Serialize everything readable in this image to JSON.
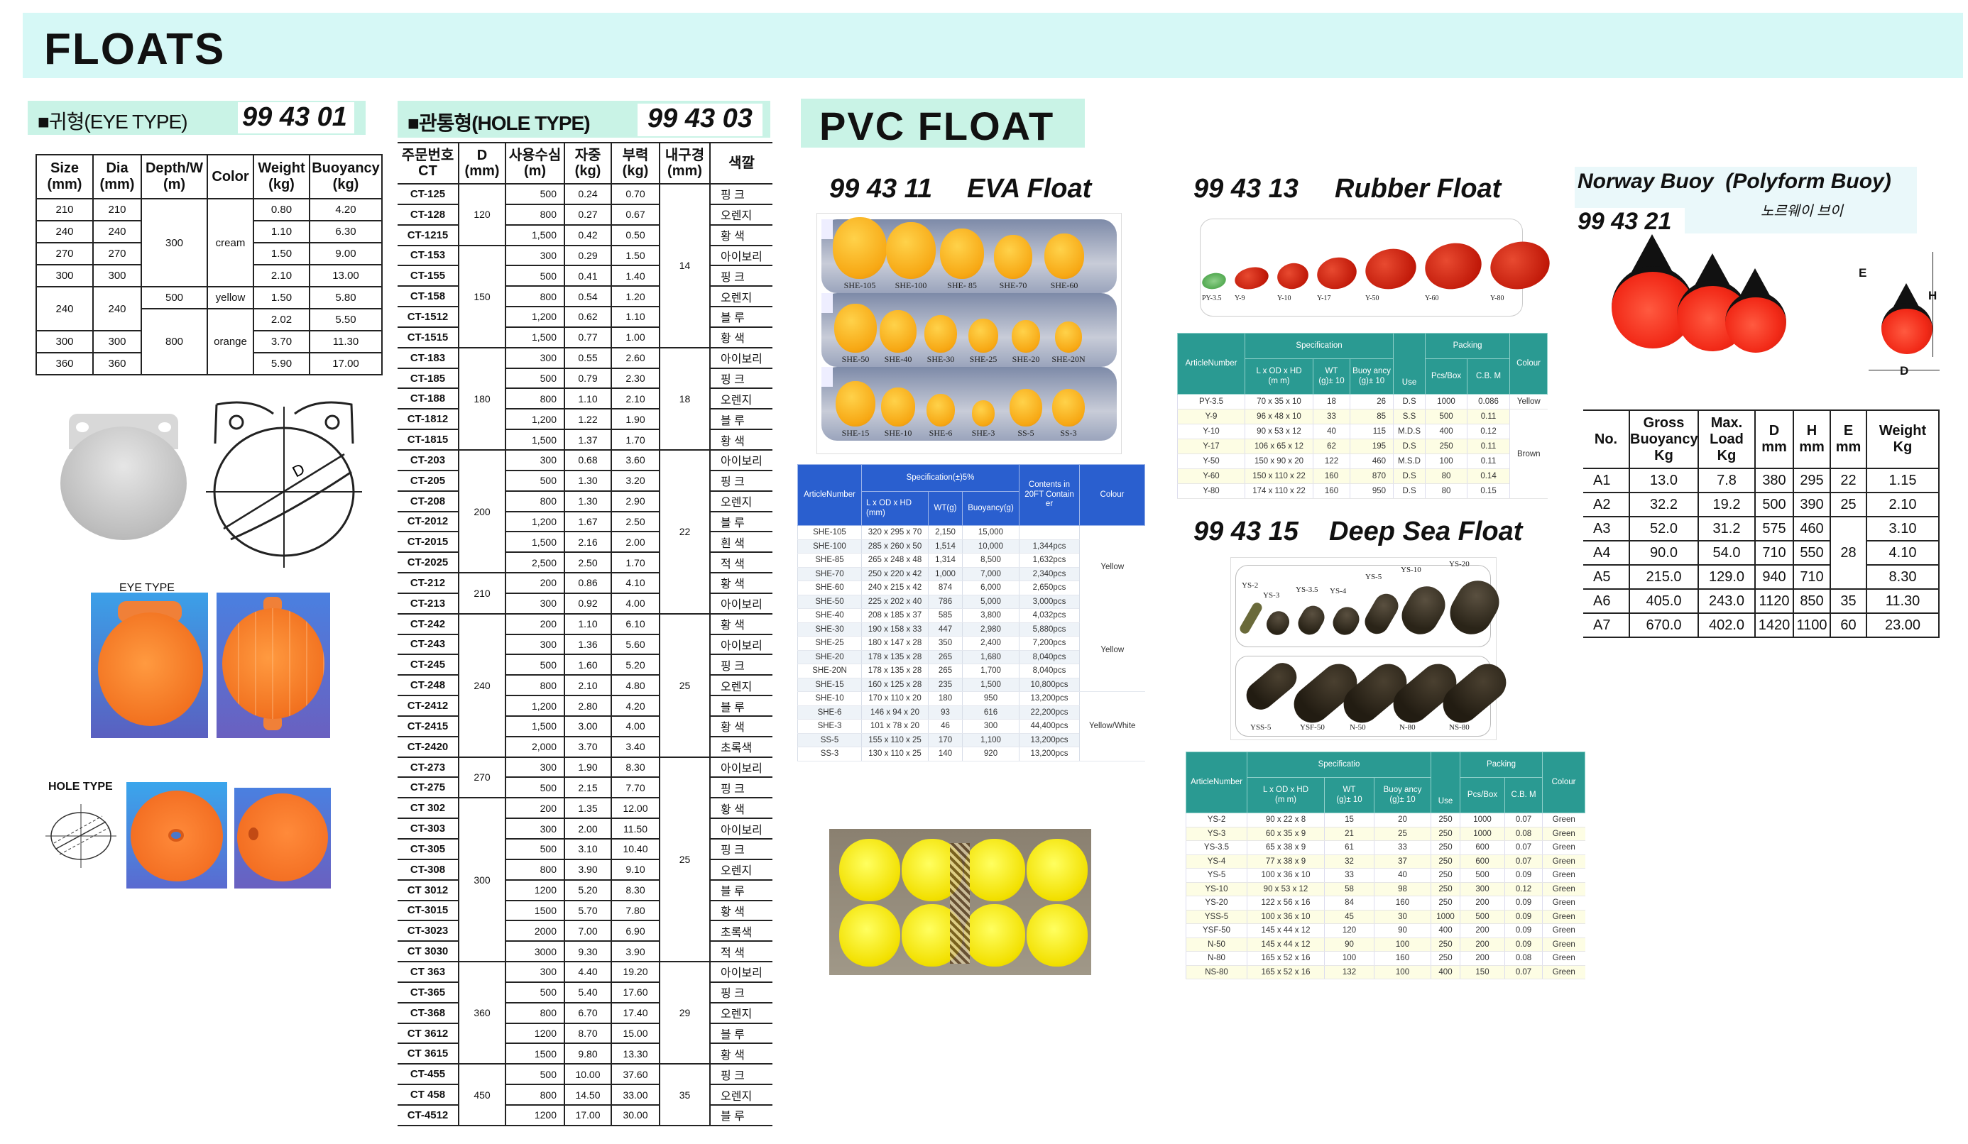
{
  "page_title": "FLOATS",
  "colors": {
    "band": "#d6f8f6",
    "eva_header": "#2a5fcf",
    "teal_header": "#2a9a92",
    "float_orange": "#f57a20",
    "buoy_red": "#f22a18"
  },
  "eye_type": {
    "section_title": "■귀형(EYE TYPE)",
    "code": "99 43 01",
    "headers": [
      "Size\n(mm)",
      "Dia\n(mm)",
      "Depth/W\n(m)",
      "Color",
      "Weight\n(kg)",
      "Buoyancy\n(kg)"
    ],
    "rows": [
      [
        "210",
        "210",
        "300",
        "cream",
        "0.80",
        "4.20"
      ],
      [
        "240",
        "240",
        "300",
        "cream",
        "1.10",
        "6.30"
      ],
      [
        "270",
        "270",
        "300",
        "cream",
        "1.50",
        "9.00"
      ],
      [
        "300",
        "300",
        "300",
        "cream",
        "2.10",
        "13.00"
      ],
      [
        "240",
        "240",
        "500",
        "yellow",
        "1.50",
        "5.80"
      ],
      [
        "240",
        "240",
        "800",
        "orange",
        "2.02",
        "5.50"
      ],
      [
        "300",
        "300",
        "800",
        "orange",
        "3.70",
        "11.30"
      ],
      [
        "360",
        "360",
        "800",
        "orange",
        "5.90",
        "17.00"
      ]
    ],
    "drawing_label": "D",
    "photo_caption": "EYE TYPE",
    "hole_caption": "HOLE TYPE"
  },
  "hole_type": {
    "section_title": "■관통형(HOLE TYPE)",
    "code": "99 43 03",
    "headers": [
      "주문번호\nCT",
      "D\n(mm)",
      "사용수심\n(m)",
      "자중\n(kg)",
      "부력\n(kg)",
      "내구경\n(mm)",
      "색깔"
    ],
    "groups": [
      {
        "d": "120",
        "rows": [
          [
            "CT-125",
            "500",
            "0.24",
            "0.70",
            "핑  크"
          ],
          [
            "CT-128",
            "800",
            "0.27",
            "0.67",
            "오렌지"
          ],
          [
            "CT-1215",
            "1,500",
            "0.42",
            "0.50",
            "황  색"
          ]
        ]
      },
      {
        "d": "150",
        "rows": [
          [
            "CT-153",
            "300",
            "0.29",
            "1.50",
            "아이보리"
          ],
          [
            "CT-155",
            "500",
            "0.41",
            "1.40",
            "핑  크"
          ],
          [
            "CT-158",
            "800",
            "0.54",
            "1.20",
            "오렌지"
          ],
          [
            "CT-1512",
            "1,200",
            "0.62",
            "1.10",
            "블  루"
          ],
          [
            "CT-1515",
            "1,500",
            "0.77",
            "1.00",
            "황  색"
          ]
        ]
      },
      {
        "d": "180",
        "rows": [
          [
            "CT-183",
            "300",
            "0.55",
            "2.60",
            "아이보리"
          ],
          [
            "CT-185",
            "500",
            "0.79",
            "2.30",
            "핑  크"
          ],
          [
            "CT-188",
            "800",
            "1.10",
            "2.10",
            "오렌지"
          ],
          [
            "CT-1812",
            "1,200",
            "1.22",
            "1.90",
            "블  루"
          ],
          [
            "CT-1815",
            "1,500",
            "1.37",
            "1.70",
            "황  색"
          ]
        ]
      },
      {
        "d": "200",
        "rows": [
          [
            "CT-203",
            "300",
            "0.68",
            "3.60",
            "아이보리"
          ],
          [
            "CT-205",
            "500",
            "1.30",
            "3.20",
            "핑  크"
          ],
          [
            "CT-208",
            "800",
            "1.30",
            "2.90",
            "오렌지"
          ],
          [
            "CT-2012",
            "1,200",
            "1.67",
            "2.50",
            "블  루"
          ],
          [
            "CT-2015",
            "1,500",
            "2.16",
            "2.00",
            "흰  색"
          ],
          [
            "CT-2025",
            "2,500",
            "2.50",
            "1.70",
            "적  색"
          ]
        ]
      },
      {
        "d": "210",
        "rows": [
          [
            "CT-212",
            "200",
            "0.86",
            "4.10",
            "황  색"
          ],
          [
            "CT-213",
            "300",
            "0.92",
            "4.00",
            "아이보리"
          ]
        ]
      },
      {
        "d": "240",
        "rows": [
          [
            "CT-242",
            "200",
            "1.10",
            "6.10",
            "황  색"
          ],
          [
            "CT-243",
            "300",
            "1.36",
            "5.60",
            "아이보리"
          ],
          [
            "CT-245",
            "500",
            "1.60",
            "5.20",
            "핑  크"
          ],
          [
            "CT-248",
            "800",
            "2.10",
            "4.80",
            "오렌지"
          ],
          [
            "CT-2412",
            "1,200",
            "2.80",
            "4.20",
            "블  루"
          ],
          [
            "CT-2415",
            "1,500",
            "3.00",
            "4.00",
            "황  색"
          ],
          [
            "CT-2420",
            "2,000",
            "3.70",
            "3.40",
            "초록색"
          ]
        ]
      },
      {
        "d": "270",
        "rows": [
          [
            "CT-273",
            "300",
            "1.90",
            "8.30",
            "아이보리"
          ],
          [
            "CT-275",
            "500",
            "2.15",
            "7.70",
            "핑  크"
          ]
        ]
      },
      {
        "d": "300",
        "rows": [
          [
            "CT 302",
            "200",
            "1.35",
            "12.00",
            "황  색"
          ],
          [
            "CT-303",
            "300",
            "2.00",
            "11.50",
            "아이보리"
          ],
          [
            "CT-305",
            "500",
            "3.10",
            "10.40",
            "핑  크"
          ],
          [
            "CT-308",
            "800",
            "3.90",
            "9.10",
            "오렌지"
          ],
          [
            "CT 3012",
            "1200",
            "5.20",
            "8.30",
            "블  루"
          ],
          [
            "CT-3015",
            "1500",
            "5.70",
            "7.80",
            "황  색"
          ],
          [
            "CT-3023",
            "2000",
            "7.00",
            "6.90",
            "초록색"
          ],
          [
            "CT 3030",
            "3000",
            "9.30",
            "3.90",
            "적  색"
          ]
        ]
      },
      {
        "d": "360",
        "rows": [
          [
            "CT 363",
            "300",
            "4.40",
            "19.20",
            "아이보리"
          ],
          [
            "CT-365",
            "500",
            "5.40",
            "17.60",
            "핑  크"
          ],
          [
            "CT-368",
            "800",
            "6.70",
            "17.40",
            "오렌지"
          ],
          [
            "CT 3612",
            "1200",
            "8.70",
            "15.00",
            "블  루"
          ],
          [
            "CT 3615",
            "1500",
            "9.80",
            "13.30",
            "황  색"
          ]
        ]
      },
      {
        "d": "450",
        "rows": [
          [
            "CT-455",
            "500",
            "10.00",
            "37.60",
            "핑  크"
          ],
          [
            "CT 458",
            "800",
            "14.50",
            "33.00",
            "오렌지"
          ],
          [
            "CT-4512",
            "1200",
            "17.00",
            "30.00",
            "블  루"
          ]
        ]
      }
    ],
    "inner_groups": [
      {
        "value": "14",
        "rows": 8
      },
      {
        "value": "18",
        "rows": 5
      },
      {
        "value": "22",
        "rows": 8
      },
      {
        "value": "25",
        "rows": 7
      },
      {
        "value": "25",
        "rows": 10
      },
      {
        "value": "29",
        "rows": 5
      },
      {
        "value": "35",
        "rows": 3
      }
    ]
  },
  "pvc": {
    "section_title": "PVC FLOAT",
    "eva": {
      "code": "99 43 11",
      "name": "EVA Float",
      "photo_labels": [
        [
          "SHE-105",
          "SHE-100",
          "SHE- 85",
          "SHE-70",
          "SHE-60"
        ],
        [
          "SHE-50",
          "SHE-40",
          "SHE-30",
          "SHE-25",
          "SHE-20",
          "SHE-20N"
        ],
        [
          "SHE-15",
          "SHE-10",
          "SHE-6",
          "SHE-3",
          "SS-5",
          "SS-3"
        ]
      ],
      "headers": {
        "article": "ArticleNumber",
        "spec": "Specification(±)5%",
        "dims": "L x OD x HD\n(mm)",
        "wt": "WT(g)",
        "buoy": "Buoyancy(g)",
        "contents": "Contents in\n20FT Contain\ner",
        "colour": "Colour"
      },
      "rows": [
        [
          "SHE-105",
          "320 x 295 x 70",
          "2,150",
          "15,000",
          ""
        ],
        [
          "SHE-100",
          "285 x 260 x 50",
          "1,514",
          "10,000",
          "1,344pcs"
        ],
        [
          "SHE-85",
          "265 x 248 x 48",
          "1,314",
          "8,500",
          "1,632pcs"
        ],
        [
          "SHE-70",
          "250 x 220 x 42",
          "1,000",
          "7,000",
          "2,340pcs"
        ],
        [
          "SHE-60",
          "240 x 215 x 42",
          "874",
          "6,000",
          "2,650pcs"
        ],
        [
          "SHE-50",
          "225 x 202 x 40",
          "786",
          "5,000",
          "3,000pcs"
        ],
        [
          "SHE-40",
          "208 x 185 x 37",
          "585",
          "3,800",
          "4,032pcs"
        ],
        [
          "SHE-30",
          "190 x 158 x 33",
          "447",
          "2,980",
          "5,880pcs"
        ],
        [
          "SHE-25",
          "180 x 147 x 28",
          "350",
          "2,400",
          "7,200pcs"
        ],
        [
          "SHE-20",
          "178 x 135 x 28",
          "265",
          "1,680",
          "8,040pcs"
        ],
        [
          "SHE-20N",
          "178 x 135 x 28",
          "265",
          "1,700",
          "8,040pcs"
        ],
        [
          "SHE-15",
          "160 x 125 x 28",
          "235",
          "1,500",
          "10,800pcs"
        ],
        [
          "SHE-10",
          "170 x 110 x 20",
          "180",
          "950",
          "13,200pcs"
        ],
        [
          "SHE-6",
          "146 x 94 x 20",
          "93",
          "616",
          "22,200pcs"
        ],
        [
          "SHE-3",
          "101 x 78 x 20",
          "46",
          "300",
          "44,400pcs"
        ],
        [
          "SS-5",
          "155 x 110 x 25",
          "170",
          "1,100",
          "13,200pcs"
        ],
        [
          "SS-3",
          "130 x 110 x 25",
          "140",
          "920",
          "13,200pcs"
        ]
      ],
      "colour_groups": [
        {
          "value": "Yellow",
          "rows": 6
        },
        {
          "value": "Yellow",
          "rows": 6
        },
        {
          "value": "Yellow/White",
          "rows": 5
        }
      ]
    },
    "rubber": {
      "code": "99 43 13",
      "name": "Rubber Float",
      "photo_labels": [
        "PY-3.5",
        "Y-9",
        "Y-10",
        "Y-17",
        "Y-50",
        "Y-60",
        "Y-80"
      ],
      "headers": {
        "article": "ArticleNumber",
        "spec": "Specification",
        "dims": "L x OD x HD\n(m m)",
        "wt": "WT\n(g)± 10",
        "buoy": "Buoy ancy\n(g)± 10",
        "use": "Use",
        "packing": "Packing",
        "pcs": "Pcs/Box",
        "cbm": "C.B. M",
        "colour": "Colour"
      },
      "rows": [
        [
          "PY-3.5",
          "70 x 35 x 10",
          "18",
          "26",
          "D.S",
          "1000",
          "0.086"
        ],
        [
          "Y-9",
          "96 x 48 x 10",
          "33",
          "85",
          "S.S",
          "500",
          "0.11"
        ],
        [
          "Y-10",
          "90 x 53 x 12",
          "40",
          "115",
          "M.D.S",
          "400",
          "0.12"
        ],
        [
          "Y-17",
          "106 x 65 x 12",
          "62",
          "195",
          "D.S",
          "250",
          "0.11"
        ],
        [
          "Y-50",
          "150 x 90 x 20",
          "122",
          "460",
          "M.S.D",
          "100",
          "0.11"
        ],
        [
          "Y-60",
          "150 x 110 x 22",
          "160",
          "870",
          "D.S",
          "80",
          "0.14"
        ],
        [
          "Y-80",
          "174 x 110 x 22",
          "160",
          "950",
          "D.S",
          "80",
          "0.15"
        ]
      ],
      "colour_groups": [
        {
          "value": "Yellow",
          "rows": 1
        },
        {
          "value": "Brown",
          "rows": 6
        }
      ]
    },
    "deep_sea": {
      "code": "99 43 15",
      "name": "Deep Sea Float",
      "photo_labels_top": [
        "YS-2",
        "YS-3",
        "YS-3.5",
        "YS-4",
        "YS-5",
        "YS-10",
        "YS-20"
      ],
      "photo_labels_bottom": [
        "YSS-5",
        "YSF-50",
        "N-50",
        "N-80",
        "NS-80"
      ],
      "headers": {
        "article": "ArticleNumber",
        "spec": "Specificatio",
        "dims": "L x OD x HD\n(m m)",
        "wt": "WT\n(g)± 10",
        "buoy": "Buoy ancy\n(g)± 10",
        "use": "Use",
        "packing": "Packing",
        "pcs": "Pcs/Box",
        "cbm": "C.B. M",
        "colour": "Colour"
      },
      "rows": [
        [
          "YS-2",
          "90 x 22 x 8",
          "15",
          "20",
          "250",
          "1000",
          "0.07",
          "Green"
        ],
        [
          "YS-3",
          "60 x 35 x 9",
          "21",
          "25",
          "250",
          "1000",
          "0.08",
          "Green"
        ],
        [
          "YS-3.5",
          "65 x 38 x 9",
          "61",
          "33",
          "250",
          "600",
          "0.07",
          "Green"
        ],
        [
          "YS-4",
          "77 x 38 x 9",
          "32",
          "37",
          "250",
          "600",
          "0.07",
          "Green"
        ],
        [
          "YS-5",
          "100 x 36 x 10",
          "33",
          "40",
          "250",
          "500",
          "0.09",
          "Green"
        ],
        [
          "YS-10",
          "90 x 53 x 12",
          "58",
          "98",
          "250",
          "300",
          "0.12",
          "Green"
        ],
        [
          "YS-20",
          "122 x 56 x 16",
          "84",
          "160",
          "250",
          "200",
          "0.09",
          "Green"
        ],
        [
          "YSS-5",
          "100 x 36 x 10",
          "45",
          "30",
          "1000",
          "500",
          "0.09",
          "Green"
        ],
        [
          "YSF-50",
          "145 x 44 x 12",
          "120",
          "90",
          "400",
          "200",
          "0.09",
          "Green"
        ],
        [
          "N-50",
          "145 x 44 x 12",
          "90",
          "100",
          "250",
          "200",
          "0.09",
          "Green"
        ],
        [
          "N-80",
          "165 x 52 x 16",
          "100",
          "160",
          "250",
          "200",
          "0.08",
          "Green"
        ],
        [
          "NS-80",
          "165 x 52 x 16",
          "132",
          "100",
          "400",
          "150",
          "0.07",
          "Green"
        ]
      ]
    }
  },
  "norway": {
    "title": "Norway Buoy  (Polyform Buoy)",
    "subtitle": "노르웨이 브이",
    "code": "99 43 21",
    "dim_labels": {
      "e": "E",
      "h": "H",
      "d": "D"
    },
    "headers": [
      "No.",
      "Gross\nBuoyancy\nKg",
      "Max.\nLoad\nKg",
      "D\nmm",
      "H\nmm",
      "E\nmm",
      "Weight\nKg"
    ],
    "rows": [
      [
        "A1",
        "13.0",
        "7.8",
        "380",
        "295",
        "22",
        "1.15"
      ],
      [
        "A2",
        "32.2",
        "19.2",
        "500",
        "390",
        "25",
        "2.10"
      ],
      [
        "A3",
        "52.0",
        "31.2",
        "575",
        "460",
        "28",
        "3.10"
      ],
      [
        "A4",
        "90.0",
        "54.0",
        "710",
        "550",
        "28",
        "4.10"
      ],
      [
        "A5",
        "215.0",
        "129.0",
        "940",
        "710",
        "28",
        "8.30"
      ],
      [
        "A6",
        "405.0",
        "243.0",
        "1120",
        "850",
        "35",
        "11.30"
      ],
      [
        "A7",
        "670.0",
        "402.0",
        "1420",
        "1100",
        "60",
        "23.00"
      ]
    ]
  }
}
